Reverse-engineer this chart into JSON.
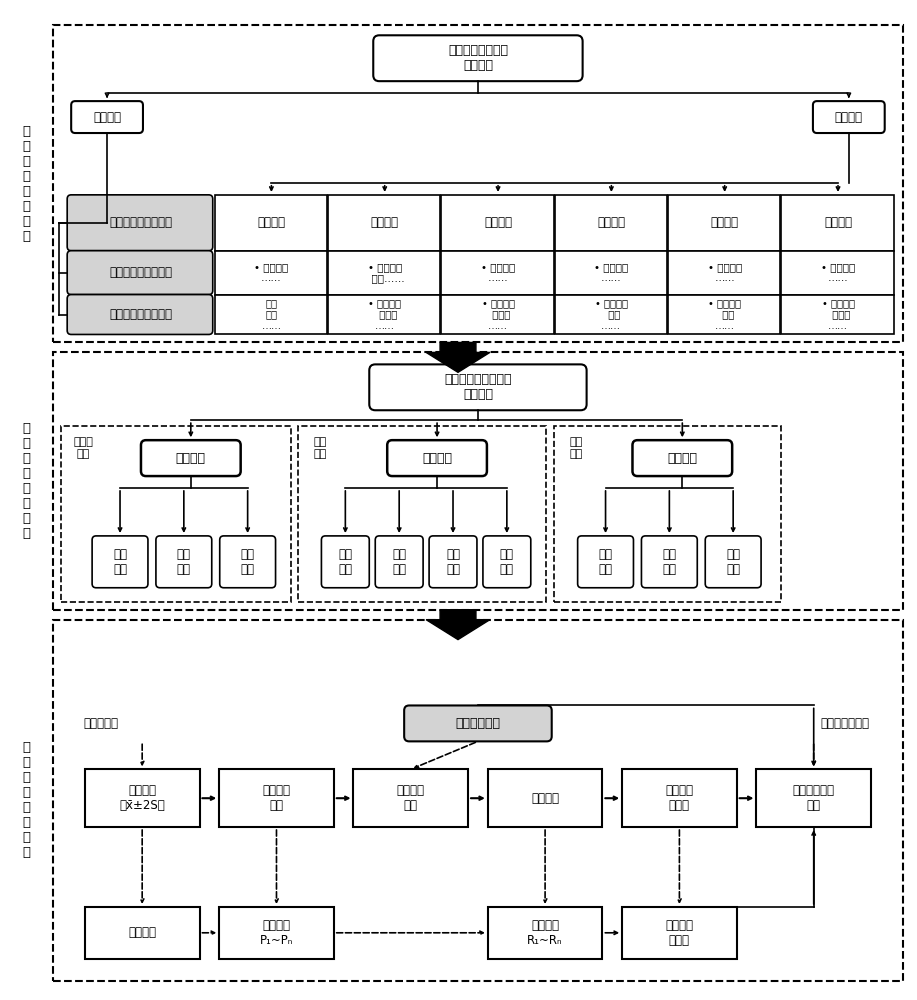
{
  "section1_label": "创\n建\n画\n像\n标\n签\n体\n系",
  "section2_label": "构\n建\n情\n境\n测\n评\n工\n具",
  "section3_label": "确\n定\n等\n级\n划\n界\n方\n案"
}
